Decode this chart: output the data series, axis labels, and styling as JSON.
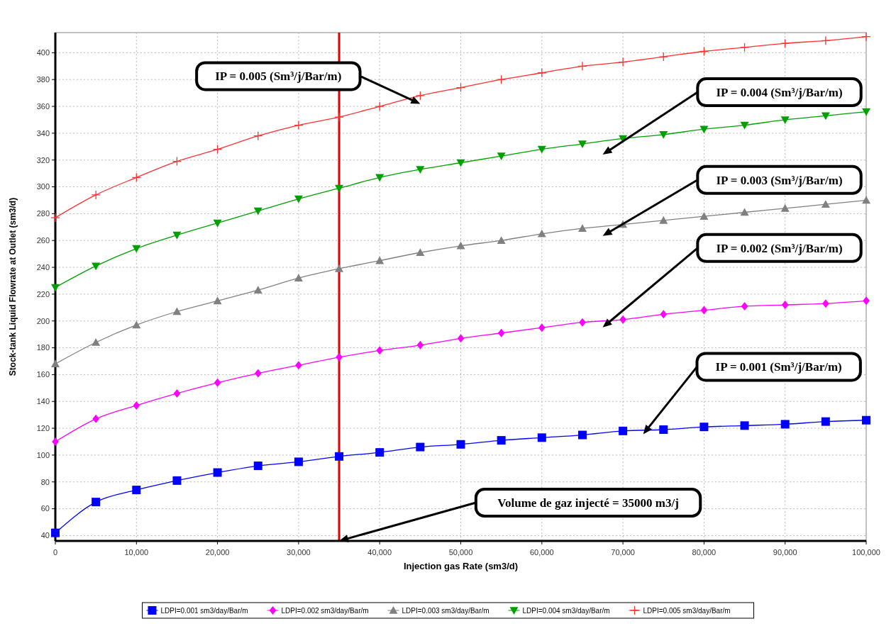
{
  "chart_data": {
    "type": "line",
    "xlabel": "Injection gas Rate (sm3/d)",
    "ylabel": "Stock-tank Liquid Flowrate at Outlet (sm3/d)",
    "x": [
      0,
      5000,
      10000,
      15000,
      20000,
      25000,
      30000,
      35000,
      40000,
      45000,
      50000,
      55000,
      60000,
      65000,
      70000,
      75000,
      80000,
      85000,
      90000,
      95000,
      100000
    ],
    "xlim": [
      0,
      100000
    ],
    "ylim": [
      36,
      415
    ],
    "xticks": [
      {
        "value": 0,
        "label": "0"
      },
      {
        "value": 10000,
        "label": "10,000"
      },
      {
        "value": 20000,
        "label": "20,000"
      },
      {
        "value": 30000,
        "label": "30,000"
      },
      {
        "value": 40000,
        "label": "40,000"
      },
      {
        "value": 50000,
        "label": "50,000"
      },
      {
        "value": 60000,
        "label": "60,000"
      },
      {
        "value": 70000,
        "label": "70,000"
      },
      {
        "value": 80000,
        "label": "80,000"
      },
      {
        "value": 90000,
        "label": "90,000"
      },
      {
        "value": 100000,
        "label": "100,000"
      }
    ],
    "yticks": [
      40,
      60,
      80,
      100,
      120,
      140,
      160,
      180,
      200,
      220,
      240,
      260,
      280,
      300,
      320,
      340,
      360,
      380,
      400
    ],
    "grid": true,
    "legend": "bottom",
    "line_style": "solid",
    "series": [
      {
        "name": "LDPI=0.001 sm3/day/Bar/m",
        "color": "#0000ff",
        "marker": "square",
        "values": [
          42,
          65,
          74,
          81,
          87,
          92,
          95,
          99,
          102,
          106,
          108,
          111,
          113,
          115,
          118,
          119,
          121,
          122,
          123,
          125,
          126
        ]
      },
      {
        "name": "LDPI=0.002 sm3/day/Bar/m",
        "color": "#ff00ff",
        "marker": "diamond",
        "values": [
          110,
          127,
          137,
          146,
          154,
          161,
          167,
          173,
          178,
          182,
          187,
          191,
          195,
          199,
          201,
          205,
          208,
          211,
          212,
          213,
          215
        ]
      },
      {
        "name": "LDPI=0.003 sm3/day/Bar/m",
        "color": "#808080",
        "marker": "triangle",
        "values": [
          168,
          184,
          197,
          207,
          215,
          223,
          232,
          239,
          245,
          251,
          256,
          260,
          265,
          269,
          272,
          275,
          278,
          281,
          284,
          287,
          290
        ]
      },
      {
        "name": "LDPI=0.004 sm3/day/Bar/m",
        "color": "#00a000",
        "marker": "triangle-down",
        "values": [
          225,
          241,
          254,
          264,
          273,
          282,
          291,
          299,
          307,
          313,
          318,
          323,
          328,
          332,
          336,
          339,
          343,
          346,
          350,
          353,
          356
        ]
      },
      {
        "name": "LDPI=0.005 sm3/day/Bar/m",
        "color": "#ff3030",
        "marker": "cross",
        "values": [
          277,
          294,
          307,
          319,
          328,
          338,
          346,
          352,
          360,
          368,
          374,
          380,
          385,
          390,
          393,
          397,
          401,
          404,
          407,
          409,
          412
        ]
      }
    ],
    "ref_lines": [
      {
        "axis": "x",
        "value": 35000,
        "color": "#e00000"
      }
    ],
    "annotations": [
      "IP = 0.005 (Sm³/j/Bar/m)",
      "IP = 0.004 (Sm³/j/Bar/m)",
      "IP = 0.003 (Sm³/j/Bar/m)",
      "IP = 0.002 (Sm³/j/Bar/m)",
      "IP = 0.001 (Sm³/j/Bar/m)",
      "Volume de gaz injecté = 35000 m3/j"
    ]
  }
}
